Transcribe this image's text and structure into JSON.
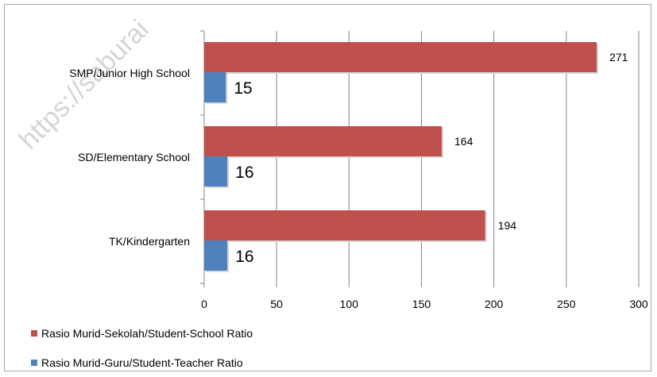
{
  "watermark": "https://saburai",
  "chart_data": {
    "type": "bar",
    "orientation": "horizontal",
    "categories": [
      "SMP/Junior High School",
      "SD/Elementary School",
      "TK/Kindergarten"
    ],
    "series": [
      {
        "name": "Rasio Murid-Sekolah/Student-School Ratio",
        "values": [
          271,
          164,
          194
        ],
        "color": "#c0504d"
      },
      {
        "name": "Rasio Murid-Guru/Student-Teacher Ratio",
        "values": [
          15,
          16,
          16
        ],
        "color": "#4f81bd"
      }
    ],
    "x_ticks": [
      "0",
      "50",
      "100",
      "150",
      "200",
      "250",
      "300"
    ],
    "xlim": [
      0,
      300
    ],
    "grid": true,
    "legend_position": "bottom-left"
  }
}
